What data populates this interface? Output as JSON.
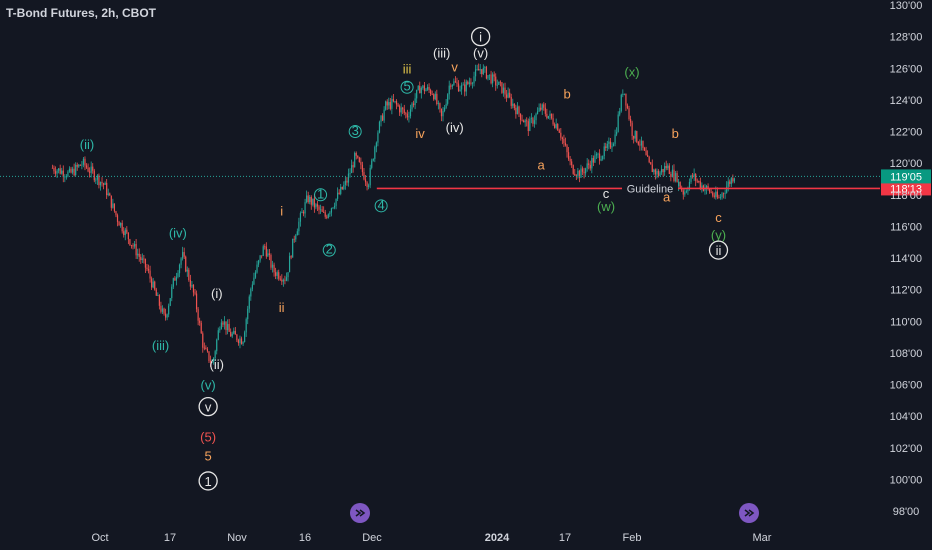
{
  "header": {
    "title": "T-Bond Futures, 2h, CBOT"
  },
  "colors": {
    "background": "#131722",
    "axis_text": "#d1d4dc",
    "up_candle": "#26a69a",
    "down_candle": "#ef5350",
    "teal_label": "#2eb8a8",
    "orange_label": "#f7a35c",
    "white_label": "#e6e6e6",
    "red_label": "#ef5350",
    "yellow_label": "#e0c44a",
    "guideline": "#f23645",
    "last_price_badge": "#089981",
    "guideline_badge": "#f23645",
    "nav_button": "#7e57c2"
  },
  "chart_data": {
    "type": "candlestick",
    "title": "T-Bond Futures, 2h, CBOT",
    "y_axis": {
      "side": "right",
      "range": [
        97.5,
        130
      ],
      "ticks": [
        "130'00",
        "128'00",
        "126'00",
        "124'00",
        "122'00",
        "120'00",
        "118'00",
        "116'00",
        "114'00",
        "112'00",
        "110'00",
        "108'00",
        "106'00",
        "104'00",
        "102'00",
        "100'00",
        "98'00"
      ],
      "tick_values": [
        130,
        128,
        126,
        124,
        122,
        120,
        118,
        116,
        114,
        112,
        110,
        108,
        106,
        104,
        102,
        100,
        98
      ]
    },
    "x_axis": {
      "ticks": [
        {
          "label": "Oct",
          "bold": false
        },
        {
          "label": "17",
          "bold": false
        },
        {
          "label": "Nov",
          "bold": false
        },
        {
          "label": "16",
          "bold": false
        },
        {
          "label": "Dec",
          "bold": false
        },
        {
          "label": "2024",
          "bold": true
        },
        {
          "label": "17",
          "bold": false
        },
        {
          "label": "Feb",
          "bold": false
        },
        {
          "label": "Mar",
          "bold": false
        }
      ]
    },
    "price_path": [
      [
        "Sep 20",
        119.7
      ],
      [
        "Sep 24",
        119.3
      ],
      [
        "Sep 27",
        120.0
      ],
      [
        "Oct 2",
        118.6
      ],
      [
        "Oct 5",
        116.5
      ],
      [
        "Oct 9",
        114.6
      ],
      [
        "Oct 12",
        113.2
      ],
      [
        "Oct 14",
        111.6
      ],
      [
        "Oct 16",
        110.1
      ],
      [
        "Oct 18",
        112.5
      ],
      [
        "Oct 20",
        114.2
      ],
      [
        "Oct 23",
        111.4
      ],
      [
        "Oct 25",
        108.2
      ],
      [
        "Oct 27",
        107.3
      ],
      [
        "Oct 29",
        110.3
      ],
      [
        "Oct 31",
        109.2
      ],
      [
        "Nov 3",
        108.8
      ],
      [
        "Nov 5",
        112.3
      ],
      [
        "Nov 8",
        114.8
      ],
      [
        "Nov 10",
        113.2
      ],
      [
        "Nov 13",
        112.7
      ],
      [
        "Nov 15",
        115.5
      ],
      [
        "Nov 18",
        117.8
      ],
      [
        "Nov 22",
        116.6
      ],
      [
        "Nov 27",
        118.8
      ],
      [
        "Nov 29",
        120.4
      ],
      [
        "Dec 2",
        118.7
      ],
      [
        "Dec 4",
        121.8
      ],
      [
        "Dec 6",
        123.6
      ],
      [
        "Dec 8",
        123.8
      ],
      [
        "Dec 11",
        123.0
      ],
      [
        "Dec 14",
        124.8
      ],
      [
        "Dec 17",
        124.5
      ],
      [
        "Dec 19",
        122.8
      ],
      [
        "Dec 21",
        125.2
      ],
      [
        "Dec 24",
        124.7
      ],
      [
        "Dec 28",
        126.0
      ],
      [
        "Jan 2",
        124.7
      ],
      [
        "Jan 5",
        123.5
      ],
      [
        "Jan 8",
        122.3
      ],
      [
        "Jan 11",
        123.5
      ],
      [
        "Jan 15",
        122.3
      ],
      [
        "Jan 18",
        119.7
      ],
      [
        "Jan 20",
        119.3
      ],
      [
        "Jan 23",
        120.2
      ],
      [
        "Jan 26",
        120.8
      ],
      [
        "Jan 28",
        121.6
      ],
      [
        "Jan 30",
        124.8
      ],
      [
        "Feb 1",
        122.0
      ],
      [
        "Feb 3",
        121.2
      ],
      [
        "Feb 5",
        119.8
      ],
      [
        "Feb 7",
        119.3
      ],
      [
        "Feb 9",
        119.8
      ],
      [
        "Feb 11",
        119.1
      ],
      [
        "Feb 13",
        118.1
      ],
      [
        "Feb 15",
        119.2
      ],
      [
        "Feb 17",
        118.6
      ],
      [
        "Feb 19",
        118.2
      ],
      [
        "Feb 21",
        117.7
      ],
      [
        "Feb 23",
        118.6
      ],
      [
        "Feb 25",
        119.4
      ]
    ],
    "horizontal_lines": [
      {
        "value": 118.4,
        "label": "Guideline",
        "style": "solid",
        "from": "Dec 4",
        "badge": "118'13"
      },
      {
        "value": 119.16,
        "label": "",
        "style": "dotted",
        "from": "Sep 20",
        "badge": "119'05"
      }
    ],
    "wave_labels": [
      {
        "text": "(ii)",
        "date": "Sep 28",
        "price": 121.2,
        "color": "teal",
        "circled": false
      },
      {
        "text": "(iv)",
        "date": "Oct 19",
        "price": 115.6,
        "color": "teal",
        "circled": false
      },
      {
        "text": "(iii)",
        "date": "Oct 15",
        "price": 108.5,
        "color": "teal",
        "circled": false
      },
      {
        "text": "(v)",
        "date": "Oct 26",
        "price": 106.0,
        "color": "teal",
        "circled": false
      },
      {
        "text": "v",
        "date": "Oct 26",
        "price": 104.6,
        "color": "white",
        "circled": true
      },
      {
        "text": "(i)",
        "date": "Oct 28",
        "price": 111.8,
        "color": "white",
        "circled": false
      },
      {
        "text": "(ii)",
        "date": "Oct 28",
        "price": 107.3,
        "color": "white",
        "circled": false
      },
      {
        "text": "(5)",
        "date": "Oct 26",
        "price": 102.7,
        "color": "red",
        "circled": false
      },
      {
        "text": "5",
        "date": "Oct 26",
        "price": 101.5,
        "color": "orange",
        "circled": false
      },
      {
        "text": "1",
        "date": "Oct 26",
        "price": 99.9,
        "color": "white",
        "circled": true
      },
      {
        "text": "i",
        "date": "Nov 12",
        "price": 117.0,
        "color": "orange",
        "circled": false
      },
      {
        "text": "ii",
        "date": "Nov 12",
        "price": 110.9,
        "color": "orange",
        "circled": false
      },
      {
        "text": "1",
        "date": "Nov 21",
        "price": 118.0,
        "color": "teal",
        "circled": true
      },
      {
        "text": "2",
        "date": "Nov 23",
        "price": 114.5,
        "color": "teal",
        "circled": true
      },
      {
        "text": "3",
        "date": "Nov 29",
        "price": 122.0,
        "color": "teal",
        "circled": true
      },
      {
        "text": "4",
        "date": "Dec 5",
        "price": 117.3,
        "color": "teal",
        "circled": true
      },
      {
        "text": "5",
        "date": "Dec 11",
        "price": 124.8,
        "color": "teal",
        "circled": true
      },
      {
        "text": "iii",
        "date": "Dec 11",
        "price": 126.0,
        "color": "yellow",
        "circled": false
      },
      {
        "text": "iv",
        "date": "Dec 14",
        "price": 121.9,
        "color": "orange",
        "circled": false
      },
      {
        "text": "(iii)",
        "date": "Dec 19",
        "price": 127.0,
        "color": "white",
        "circled": false
      },
      {
        "text": "v",
        "date": "Dec 22",
        "price": 126.1,
        "color": "orange",
        "circled": false
      },
      {
        "text": "(iv)",
        "date": "Dec 22",
        "price": 122.3,
        "color": "white",
        "circled": false
      },
      {
        "text": "(v)",
        "date": "Dec 28",
        "price": 127.0,
        "color": "white",
        "circled": false
      },
      {
        "text": "i",
        "date": "Dec 28",
        "price": 128.0,
        "color": "white",
        "circled": true
      },
      {
        "text": "a",
        "date": "Jan 11",
        "price": 119.9,
        "color": "orange",
        "circled": false
      },
      {
        "text": "b",
        "date": "Jan 17",
        "price": 124.4,
        "color": "orange",
        "circled": false
      },
      {
        "text": "c",
        "date": "Jan 26",
        "price": 118.1,
        "color": "white",
        "circled": false
      },
      {
        "text": "(w)",
        "date": "Jan 26",
        "price": 117.3,
        "color": "green",
        "circled": false
      },
      {
        "text": "(x)",
        "date": "Feb 1",
        "price": 125.8,
        "color": "green",
        "circled": false
      },
      {
        "text": "b",
        "date": "Feb 11",
        "price": 121.9,
        "color": "orange",
        "circled": false
      },
      {
        "text": "a",
        "date": "Feb 9",
        "price": 117.9,
        "color": "orange",
        "circled": false
      },
      {
        "text": "c",
        "date": "Feb 21",
        "price": 116.6,
        "color": "orange",
        "circled": false
      },
      {
        "text": "(y)",
        "date": "Feb 21",
        "price": 115.5,
        "color": "green",
        "circled": false
      },
      {
        "text": "ii",
        "date": "Feb 21",
        "price": 114.5,
        "color": "white",
        "circled": true
      }
    ],
    "grid": false,
    "legend": "none"
  }
}
